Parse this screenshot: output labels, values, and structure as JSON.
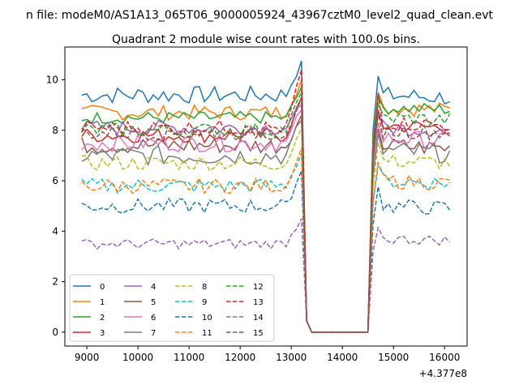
{
  "figure": {
    "suptitle": "n file: modeM0/AS1A13_065T06_9000005924_43967cztM0_level2_quad_clean.evt",
    "title": "Quadrant 2 module wise count rates with 100.0s bins."
  },
  "chart_data": {
    "type": "line",
    "title": "Quadrant 2 module wise count rates with 100.0s bins.",
    "xlabel": "",
    "ylabel": "",
    "x_offset_label": "+4.377e8",
    "xlim": [
      8570,
      16440
    ],
    "ylim": [
      -0.55,
      11.3
    ],
    "xticks": [
      9000,
      10000,
      11000,
      12000,
      13000,
      14000,
      15000,
      16000
    ],
    "yticks": [
      0,
      2,
      4,
      6,
      8,
      10
    ],
    "x_start": 8900,
    "x_step": 100,
    "x_end": 16100,
    "legend": {
      "placement": "lower-left",
      "columns": 4
    },
    "series": [
      {
        "name": "0",
        "color": "#1f77b4",
        "dash": "solid",
        "level": 9.4,
        "peak": 10.75,
        "jitter": 0.35,
        "post": 9.4
      },
      {
        "name": "1",
        "color": "#ff7f0e",
        "dash": "solid",
        "level": 8.7,
        "peak": 10.0,
        "jitter": 0.3,
        "post": 8.9
      },
      {
        "name": "2",
        "color": "#2ca02c",
        "dash": "solid",
        "level": 8.5,
        "peak": 9.7,
        "jitter": 0.25,
        "post": 8.9
      },
      {
        "name": "3",
        "color": "#d62728",
        "dash": "solid",
        "level": 7.8,
        "peak": 9.3,
        "jitter": 0.3,
        "post": 8.2
      },
      {
        "name": "4",
        "color": "#9467bd",
        "dash": "solid",
        "level": 8.1,
        "peak": 9.0,
        "jitter": 0.3,
        "post": 8.1
      },
      {
        "name": "5",
        "color": "#8c564b",
        "dash": "solid",
        "level": 7.4,
        "peak": 8.6,
        "jitter": 0.35,
        "post": 7.4
      },
      {
        "name": "6",
        "color": "#e377c2",
        "dash": "solid",
        "level": 7.5,
        "peak": 8.8,
        "jitter": 0.35,
        "post": 7.7
      },
      {
        "name": "7",
        "color": "#7f7f7f",
        "dash": "solid",
        "level": 7.0,
        "peak": 8.4,
        "jitter": 0.4,
        "post": 7.2
      },
      {
        "name": "8",
        "color": "#bcbd22",
        "dash": "dashed",
        "level": 6.7,
        "peak": 8.1,
        "jitter": 0.3,
        "post": 6.8
      },
      {
        "name": "9",
        "color": "#17becf",
        "dash": "dashed",
        "level": 5.8,
        "peak": 7.1,
        "jitter": 0.3,
        "post": 6.0
      },
      {
        "name": "10",
        "color": "#1f77b4",
        "dash": "dashed",
        "level": 5.0,
        "peak": 6.4,
        "jitter": 0.3,
        "post": 5.0
      },
      {
        "name": "11",
        "color": "#ff7f0e",
        "dash": "dashed",
        "level": 5.8,
        "peak": 7.3,
        "jitter": 0.3,
        "post": 6.0
      },
      {
        "name": "12",
        "color": "#2ca02c",
        "dash": "dashed",
        "level": 8.0,
        "peak": 9.5,
        "jitter": 0.3,
        "post": 8.5
      },
      {
        "name": "13",
        "color": "#d62728",
        "dash": "dashed",
        "level": 8.1,
        "peak": 10.4,
        "jitter": 0.3,
        "post": 8.3
      },
      {
        "name": "14",
        "color": "#9467bd",
        "dash": "dashed",
        "level": 3.5,
        "peak": 4.5,
        "jitter": 0.2,
        "post": 3.7
      },
      {
        "name": "15",
        "color": "#8c564b",
        "dash": "dashed",
        "level": 7.9,
        "peak": 9.3,
        "jitter": 0.3,
        "post": 8.0
      }
    ],
    "gap": {
      "drop_start": 13200,
      "zero_from": 13400,
      "zero_to": 14500,
      "recover_at": 14600
    }
  }
}
